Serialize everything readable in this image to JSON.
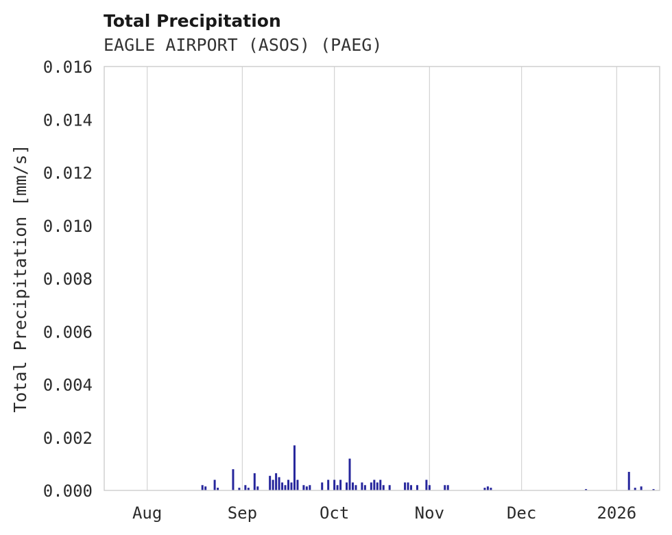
{
  "header": {
    "title": "Total Precipitation",
    "subtitle": "EAGLE AIRPORT (ASOS) (PAEG)"
  },
  "chart_data": {
    "type": "bar",
    "title": "Total Precipitation",
    "subtitle": "EAGLE AIRPORT (ASOS) (PAEG)",
    "xlabel": "",
    "ylabel": "Total Precipitation [mm/s]",
    "unit": "mm/s",
    "ylim": [
      0,
      0.016
    ],
    "grid": "vertical-only",
    "legend": false,
    "colors": {
      "bar": "#26269c",
      "grid": "#d3d3d3",
      "frame": "#cccccc",
      "tick_text": "#2b2b2b"
    },
    "y_ticks": [
      {
        "value": 0.0,
        "label": "0.000"
      },
      {
        "value": 0.002,
        "label": "0.002"
      },
      {
        "value": 0.004,
        "label": "0.004"
      },
      {
        "value": 0.006,
        "label": "0.006"
      },
      {
        "value": 0.008,
        "label": "0.008"
      },
      {
        "value": 0.01,
        "label": "0.010"
      },
      {
        "value": 0.012,
        "label": "0.012"
      },
      {
        "value": 0.014,
        "label": "0.014"
      },
      {
        "value": 0.016,
        "label": "0.016"
      }
    ],
    "x_range": [
      "2025-07-18",
      "2026-01-15"
    ],
    "x_ticks": [
      {
        "date": "2025-08-01",
        "label": "Aug"
      },
      {
        "date": "2025-09-01",
        "label": "Sep"
      },
      {
        "date": "2025-10-01",
        "label": "Oct"
      },
      {
        "date": "2025-11-01",
        "label": "Nov"
      },
      {
        "date": "2025-12-01",
        "label": "Dec"
      },
      {
        "date": "2026-01-01",
        "label": "2026"
      }
    ],
    "series": [
      {
        "name": "Total Precipitation",
        "points": [
          {
            "date": "2025-08-19",
            "value": 0.0002
          },
          {
            "date": "2025-08-20",
            "value": 0.00015
          },
          {
            "date": "2025-08-23",
            "value": 0.0004
          },
          {
            "date": "2025-08-24",
            "value": 0.0001
          },
          {
            "date": "2025-08-29",
            "value": 0.0008
          },
          {
            "date": "2025-08-31",
            "value": 0.0001
          },
          {
            "date": "2025-09-02",
            "value": 0.0002
          },
          {
            "date": "2025-09-03",
            "value": 0.0001
          },
          {
            "date": "2025-09-05",
            "value": 0.00065
          },
          {
            "date": "2025-09-06",
            "value": 0.00015
          },
          {
            "date": "2025-09-10",
            "value": 0.00055
          },
          {
            "date": "2025-09-11",
            "value": 0.0004
          },
          {
            "date": "2025-09-12",
            "value": 0.00065
          },
          {
            "date": "2025-09-13",
            "value": 0.0005
          },
          {
            "date": "2025-09-14",
            "value": 0.0003
          },
          {
            "date": "2025-09-15",
            "value": 0.0002
          },
          {
            "date": "2025-09-16",
            "value": 0.0004
          },
          {
            "date": "2025-09-17",
            "value": 0.0003
          },
          {
            "date": "2025-09-18",
            "value": 0.0017
          },
          {
            "date": "2025-09-19",
            "value": 0.0004
          },
          {
            "date": "2025-09-21",
            "value": 0.0002
          },
          {
            "date": "2025-09-22",
            "value": 0.00015
          },
          {
            "date": "2025-09-23",
            "value": 0.0002
          },
          {
            "date": "2025-09-27",
            "value": 0.0003
          },
          {
            "date": "2025-09-29",
            "value": 0.0004
          },
          {
            "date": "2025-10-01",
            "value": 0.0004
          },
          {
            "date": "2025-10-02",
            "value": 0.0002
          },
          {
            "date": "2025-10-03",
            "value": 0.0004
          },
          {
            "date": "2025-10-05",
            "value": 0.0003
          },
          {
            "date": "2025-10-06",
            "value": 0.0012
          },
          {
            "date": "2025-10-07",
            "value": 0.0003
          },
          {
            "date": "2025-10-08",
            "value": 0.0002
          },
          {
            "date": "2025-10-10",
            "value": 0.0003
          },
          {
            "date": "2025-10-11",
            "value": 0.0002
          },
          {
            "date": "2025-10-13",
            "value": 0.0003
          },
          {
            "date": "2025-10-14",
            "value": 0.0004
          },
          {
            "date": "2025-10-15",
            "value": 0.0003
          },
          {
            "date": "2025-10-16",
            "value": 0.0004
          },
          {
            "date": "2025-10-17",
            "value": 0.0002
          },
          {
            "date": "2025-10-19",
            "value": 0.0002
          },
          {
            "date": "2025-10-24",
            "value": 0.0003
          },
          {
            "date": "2025-10-25",
            "value": 0.0003
          },
          {
            "date": "2025-10-26",
            "value": 0.0002
          },
          {
            "date": "2025-10-28",
            "value": 0.0002
          },
          {
            "date": "2025-10-31",
            "value": 0.0004
          },
          {
            "date": "2025-11-01",
            "value": 0.0002
          },
          {
            "date": "2025-11-06",
            "value": 0.0002
          },
          {
            "date": "2025-11-07",
            "value": 0.0002
          },
          {
            "date": "2025-11-19",
            "value": 0.0001
          },
          {
            "date": "2025-11-20",
            "value": 0.00015
          },
          {
            "date": "2025-11-21",
            "value": 0.0001
          },
          {
            "date": "2025-12-22",
            "value": 5e-05
          },
          {
            "date": "2026-01-05",
            "value": 0.0007
          },
          {
            "date": "2026-01-07",
            "value": 0.0001
          },
          {
            "date": "2026-01-09",
            "value": 0.00015
          },
          {
            "date": "2026-01-13",
            "value": 5e-05
          }
        ]
      }
    ]
  }
}
